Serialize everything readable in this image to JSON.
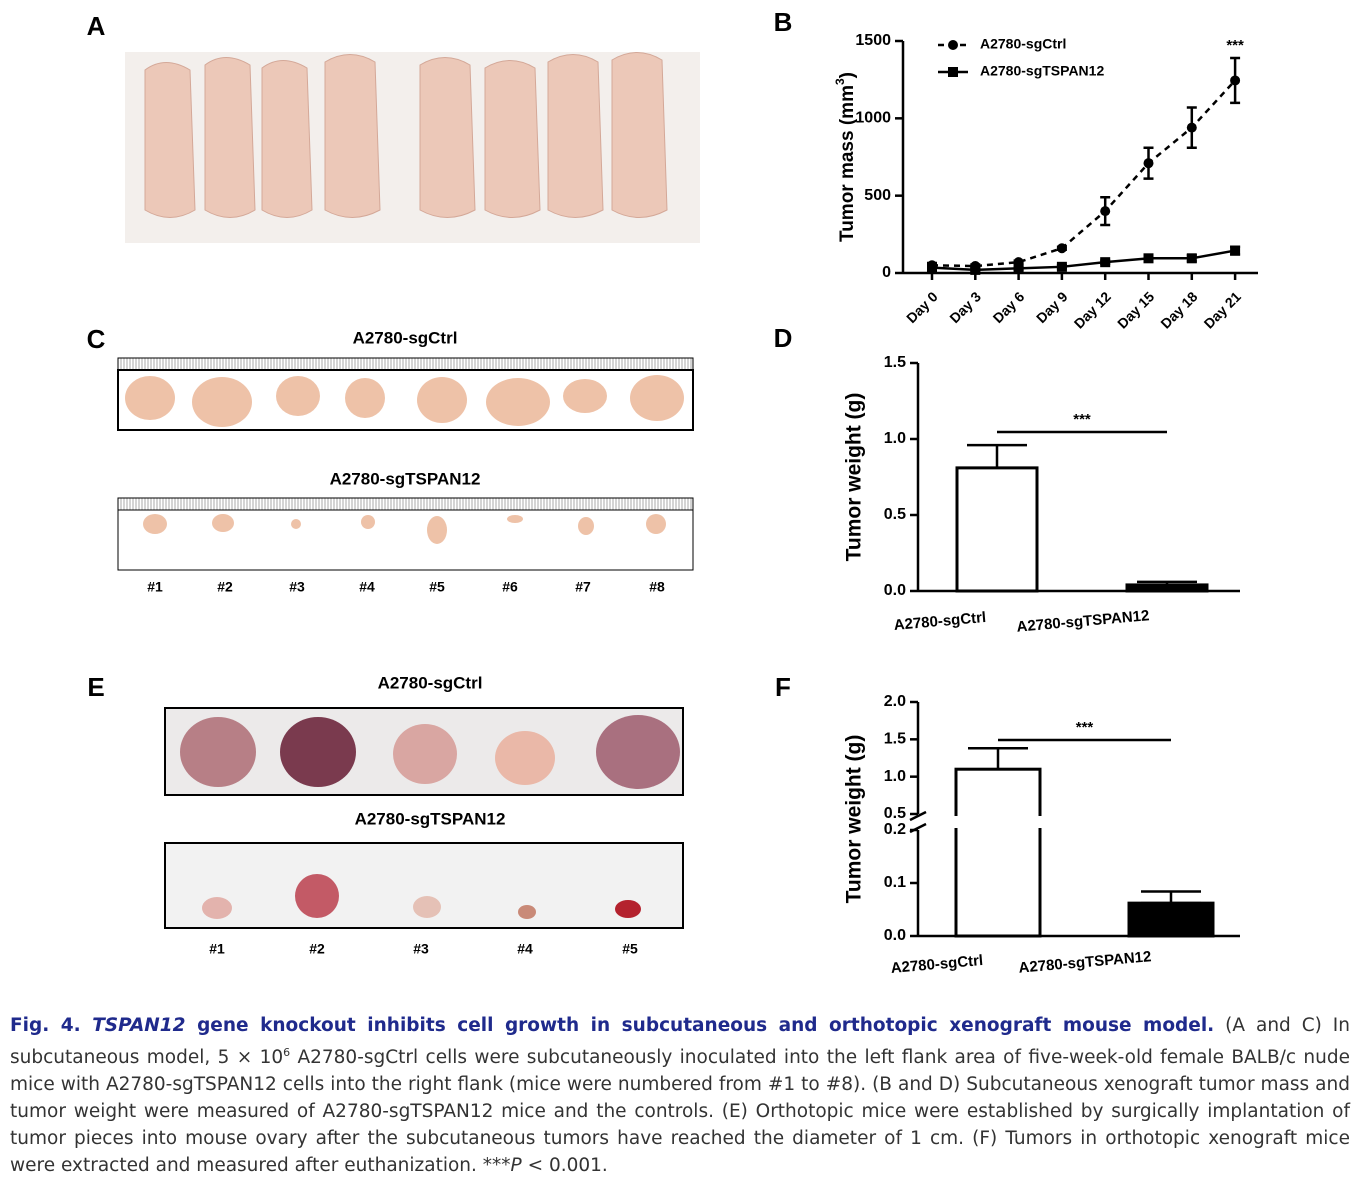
{
  "panels": {
    "a": "A",
    "b": "B",
    "c": "C",
    "d": "D",
    "e": "E",
    "f": "F"
  },
  "photos": {
    "c": {
      "top_title": "A2780-sgCtrl",
      "bottom_title": "A2780-sgTSPAN12",
      "numbers": [
        "#1",
        "#2",
        "#3",
        "#4",
        "#5",
        "#6",
        "#7",
        "#8"
      ]
    },
    "e": {
      "top_title": "A2780-sgCtrl",
      "bottom_title": "A2780-sgTSPAN12",
      "numbers": [
        "#1",
        "#2",
        "#3",
        "#4",
        "#5"
      ]
    }
  },
  "chart_data": [
    {
      "type": "line",
      "ylabel": {
        "text": "Tumor mass (mm",
        "sup": "3",
        "end": ")"
      },
      "categories": [
        "Day 0",
        "Day 3",
        "Day 6",
        "Day 9",
        "Day 12",
        "Day 15",
        "Day 18",
        "Day 21"
      ],
      "series": [
        {
          "name": "A2780-sgCtrl",
          "color": "#000000",
          "line_style": "dashed",
          "marker": "circle",
          "values": [
            50,
            45,
            70,
            160,
            400,
            710,
            940,
            1245
          ],
          "errors": [
            15,
            10,
            10,
            10,
            90,
            100,
            130,
            145
          ]
        },
        {
          "name": "A2780-sgTSPAN12",
          "color": "#000000",
          "line_style": "solid",
          "marker": "square",
          "values": [
            35,
            20,
            30,
            40,
            70,
            95,
            95,
            145
          ],
          "errors": [
            10,
            10,
            10,
            10,
            10,
            20,
            20,
            25
          ]
        }
      ],
      "ylim": [
        0,
        1500
      ],
      "yticks": [
        0,
        500,
        1000,
        1500
      ],
      "legend": "upper-left",
      "annotation": "***"
    },
    {
      "type": "bar",
      "ylabel": "Tumor weight (g)",
      "categories": [
        "A2780-sgCtrl",
        "A2780-sgTSPAN12"
      ],
      "values": [
        0.81,
        0.04
      ],
      "errors": [
        0.15,
        0.02
      ],
      "colors": [
        "#ffffff",
        "#000000"
      ],
      "ylim": [
        0,
        1.5
      ],
      "yticks": [
        {
          "value": 0,
          "label": "0.0"
        },
        0.5,
        {
          "value": 1,
          "label": "1.0"
        },
        1.5
      ],
      "annotation": "***"
    },
    {
      "type": "bar",
      "ylabel": "Tumor weight (g)",
      "categories": [
        "A2780-sgCtrl",
        "A2780-sgTSPAN12"
      ],
      "values": [
        1.1,
        0.062
      ],
      "errors": [
        0.28,
        0.022
      ],
      "colors": [
        "#ffffff",
        "#000000"
      ],
      "ylim": [
        0,
        2.0
      ],
      "axis_break": [
        0.2,
        0.5
      ],
      "yticks": [
        {
          "value": 0,
          "label": "0.0"
        },
        0.1,
        0.2,
        0.5,
        {
          "value": 1,
          "label": "1.0"
        },
        1.5,
        {
          "value": 2,
          "label": "2.0"
        }
      ],
      "annotation": "***"
    }
  ],
  "caption": {
    "fig": "Fig. 4.",
    "gene": "TSPAN12",
    "title_rest": "gene knockout inhibits cell growth in subcutaneous and orthotopic xenograft mouse model.",
    "body_1": "(A and C) In subcutaneous model, 5 × 10",
    "sup": "6",
    "body_2": "A2780-sgCtrl cells were subcutaneously inoculated into the left flank area of five-week-old female BALB/c nude mice with A2780-sgTSPAN12 cells into the right flank (mice were numbered from #1 to #8). (B and D) Subcutaneous xenograft tumor mass and tumor weight were measured of A2780-sgTSPAN12 mice and the controls. (E) Orthotopic mice were established by surgically implantation of tumor pieces into mouse ovary after the subcutaneous tumors have reached the diameter of 1 cm. (F) Tumors in orthotopic xenograft mice were extracted and measured after euthanization. ***",
    "p": "P",
    "body_3": "< 0.001."
  }
}
